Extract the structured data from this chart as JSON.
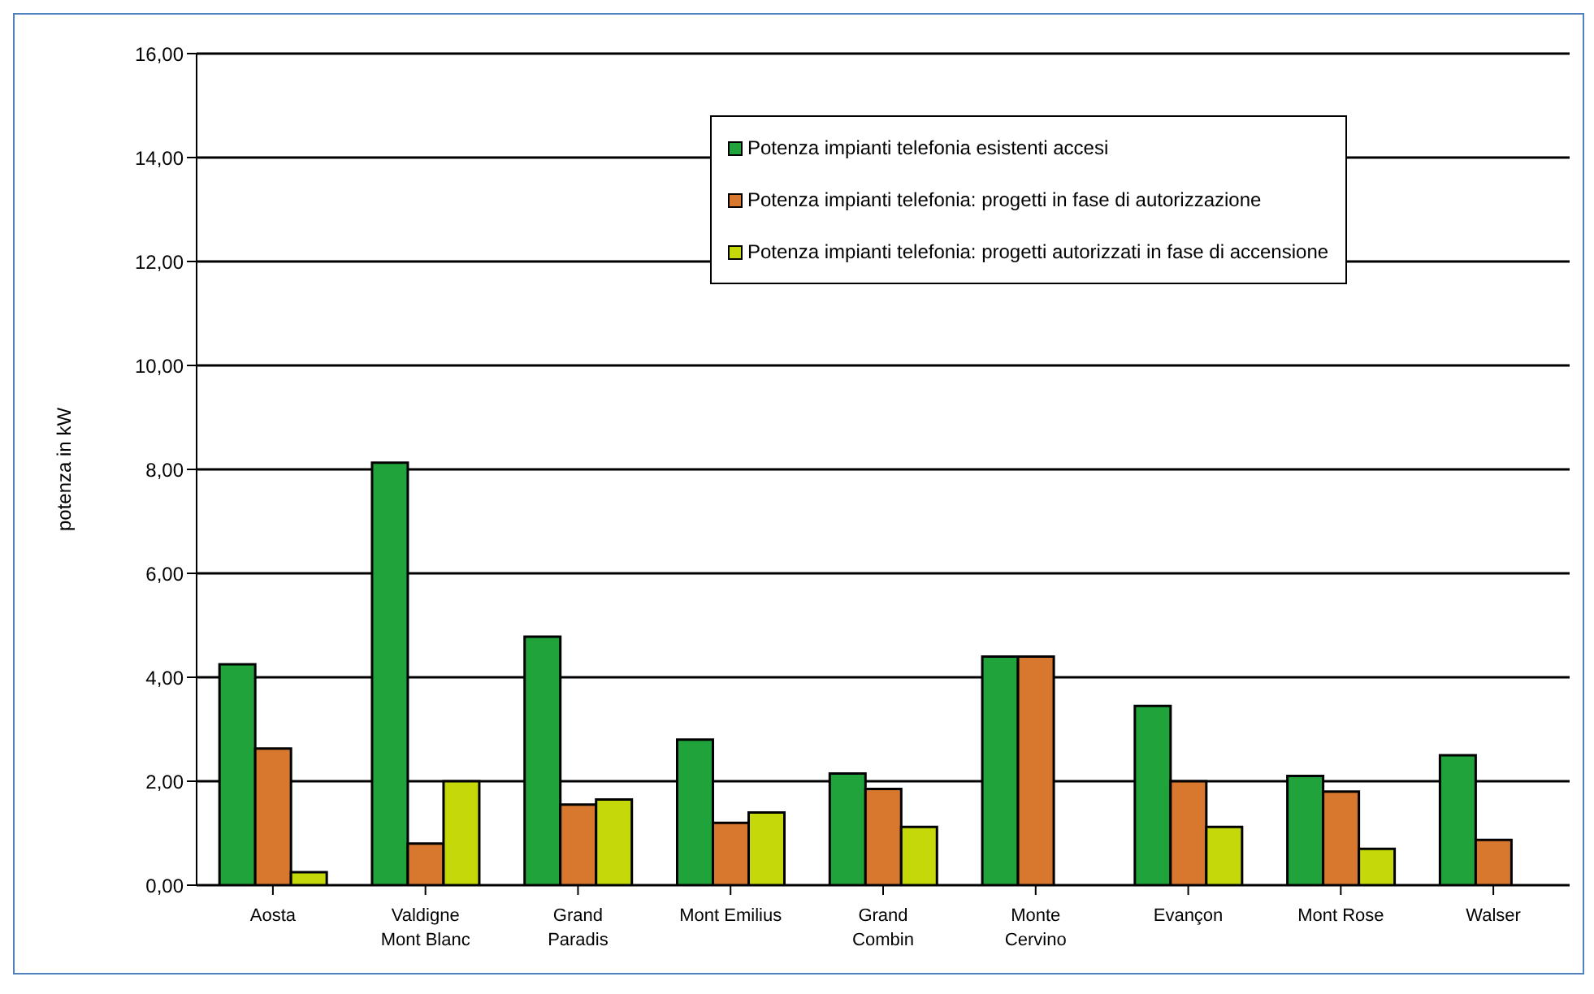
{
  "chart_data": {
    "type": "bar",
    "ylabel": "potenza in kW",
    "categories": [
      "Aosta",
      "Valdigne\nMont Blanc",
      "Grand\nParadis",
      "Mont Emilius",
      "Grand\nCombin",
      "Monte\nCervino",
      "Evançon",
      "Mont Rose",
      "Walser"
    ],
    "series": [
      {
        "name": "Potenza impianti telefonia esistenti accesi",
        "color": "#1fa33a",
        "values": [
          4.25,
          8.13,
          4.78,
          2.8,
          2.15,
          4.4,
          3.45,
          2.1,
          2.5
        ]
      },
      {
        "name": "Potenza impianti telefonia: progetti in fase di autorizzazione",
        "color": "#d8782f",
        "values": [
          2.63,
          0.8,
          1.55,
          1.2,
          1.85,
          4.4,
          2.0,
          1.8,
          0.87
        ]
      },
      {
        "name": "Potenza impianti telefonia: progetti autorizzati in fase di accensione",
        "color": "#c4d80a",
        "values": [
          0.25,
          2.0,
          1.65,
          1.4,
          1.12,
          null,
          1.12,
          0.7,
          null
        ]
      }
    ],
    "ylim": [
      0,
      16
    ],
    "yticks": [
      {
        "value": 0,
        "label": "0,00"
      },
      {
        "value": 2,
        "label": "2,00"
      },
      {
        "value": 4,
        "label": "4,00"
      },
      {
        "value": 6,
        "label": "6,00"
      },
      {
        "value": 8,
        "label": "8,00"
      },
      {
        "value": 10,
        "label": "10,00"
      },
      {
        "value": 12,
        "label": "12,00"
      },
      {
        "value": 14,
        "label": "14,00"
      },
      {
        "value": 16,
        "label": "16,00"
      }
    ],
    "grid": "y",
    "legend": "top right"
  }
}
